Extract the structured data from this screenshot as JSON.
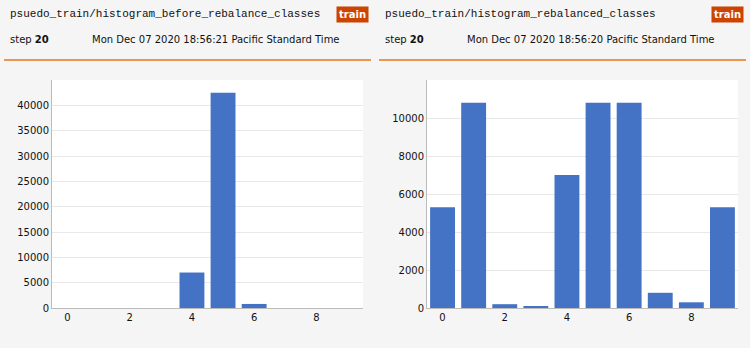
{
  "chart_data": [
    {
      "type": "bar",
      "title": "psuedo_train/histogram_before_rebalance_classes",
      "annotations": [
        "train",
        "step",
        "20",
        "Mon Dec 07 2020 18:56:21 Pacific Standard Time"
      ],
      "x": [
        0,
        1,
        2,
        3,
        4,
        5,
        6,
        7,
        8,
        9
      ],
      "values": [
        0,
        0,
        0,
        0,
        7000,
        42500,
        800,
        0,
        0,
        0
      ],
      "color": "#4472c4",
      "xlim": [
        -0.5,
        9.5
      ],
      "xticks": [
        0,
        2,
        4,
        6,
        8
      ],
      "ylim": [
        0,
        45000
      ],
      "yticks": [
        0,
        5000,
        10000,
        15000,
        20000,
        25000,
        30000,
        35000,
        40000
      ],
      "grid": true
    },
    {
      "type": "bar",
      "title": "psuedo_train/histogram_rebalanced_classes",
      "annotations": [
        "train",
        "step",
        "20",
        "Mon Dec 07 2020 18:56:20 Pacific Standard Time"
      ],
      "x": [
        0,
        1,
        2,
        3,
        4,
        5,
        6,
        7,
        8,
        9
      ],
      "values": [
        5300,
        10800,
        200,
        100,
        7000,
        10800,
        10800,
        800,
        300,
        5300
      ],
      "color": "#4472c4",
      "xlim": [
        -0.5,
        9.5
      ],
      "xticks": [
        0,
        2,
        4,
        6,
        8
      ],
      "ylim": [
        0,
        12000
      ],
      "yticks": [
        0,
        2000,
        4000,
        6000,
        8000,
        10000
      ],
      "grid": true
    }
  ]
}
